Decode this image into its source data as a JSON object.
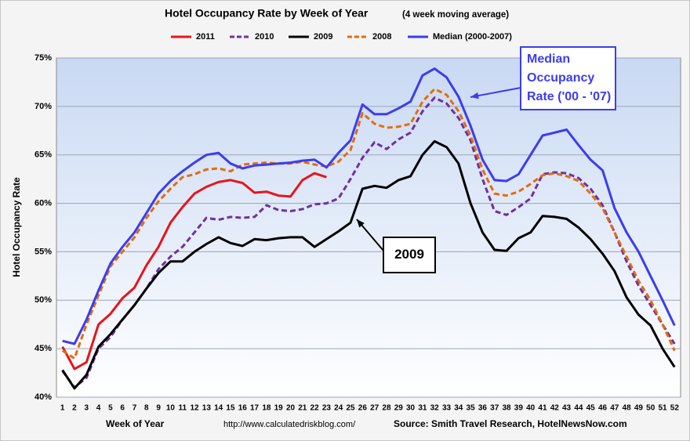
{
  "chart_data": {
    "type": "line",
    "title": "Hotel Occupancy Rate by  Week of Year",
    "subtitle": "(4 week moving average)",
    "y_label": "Hotel Occupancy Rate",
    "x_label": "Week of Year",
    "url": "http://www.calculatedriskblog.com/",
    "source": "Source: Smith Travel Research, HotelNewsNow.com",
    "categories": [
      "1",
      "2",
      "3",
      "4",
      "5",
      "6",
      "7",
      "8",
      "9",
      "10",
      "11",
      "12",
      "13",
      "14",
      "15",
      "16",
      "17",
      "18",
      "19",
      "20",
      "21",
      "22",
      "23",
      "24",
      "25",
      "26",
      "27",
      "28",
      "29",
      "30",
      "31",
      "32",
      "33",
      "34",
      "35",
      "36",
      "37",
      "38",
      "39",
      "40",
      "41",
      "42",
      "43",
      "44",
      "45",
      "46",
      "47",
      "48",
      "49",
      "50",
      "51",
      "52"
    ],
    "ylim": [
      40,
      75
    ],
    "yticks": [
      {
        "value": 40,
        "label": "40%"
      },
      {
        "value": 45,
        "label": "45%"
      },
      {
        "value": 50,
        "label": "50%"
      },
      {
        "value": 55,
        "label": "55%"
      },
      {
        "value": 60,
        "label": "60%"
      },
      {
        "value": 65,
        "label": "65%"
      },
      {
        "value": 70,
        "label": "70%"
      },
      {
        "value": 75,
        "label": "75%"
      }
    ],
    "grid": true,
    "series": [
      {
        "name": "2011",
        "color": "#e8141b",
        "dash": false,
        "values": [
          45.2,
          42.9,
          43.6,
          47.5,
          48.6,
          50.2,
          51.3,
          53.6,
          55.5,
          58,
          59.6,
          61,
          61.7,
          62.2,
          62.4,
          62.1,
          61.1,
          61.2,
          60.8,
          60.7,
          62.4,
          63.1,
          62.7,
          null,
          null,
          null,
          null,
          null,
          null,
          null,
          null,
          null,
          null,
          null,
          null,
          null,
          null,
          null,
          null,
          null,
          null,
          null,
          null,
          null,
          null,
          null,
          null,
          null,
          null,
          null,
          null,
          null
        ]
      },
      {
        "name": "2010",
        "color": "#7030a0",
        "dash": true,
        "values": [
          42.7,
          41,
          42,
          45,
          46.2,
          48,
          49.5,
          51.2,
          53.2,
          54.5,
          55.5,
          57,
          58.5,
          58.3,
          58.6,
          58.5,
          58.6,
          59.8,
          59.3,
          59.2,
          59.4,
          59.9,
          60,
          60.5,
          62.5,
          64.7,
          66.3,
          65.6,
          66.6,
          67.3,
          69.5,
          70.9,
          70.3,
          68.8,
          66.5,
          62.5,
          59.2,
          58.8,
          59.6,
          60.5,
          63,
          63.2,
          63.1,
          62.6,
          61.5,
          59.8,
          57,
          54,
          51.5,
          49.5,
          47.5,
          45.5
        ]
      },
      {
        "name": "2009",
        "color": "#000000",
        "dash": false,
        "values": [
          42.8,
          40.9,
          42.3,
          45.2,
          46.5,
          48,
          49.5,
          51.2,
          52.8,
          54,
          54,
          55,
          55.8,
          56.5,
          55.9,
          55.6,
          56.3,
          56.2,
          56.4,
          56.5,
          56.5,
          55.5,
          56.3,
          57.1,
          58,
          61.5,
          61.8,
          61.6,
          62.4,
          62.8,
          65,
          66.4,
          65.8,
          64.1,
          60,
          57,
          55.2,
          55.1,
          56.4,
          57,
          58.7,
          58.6,
          58.4,
          57.5,
          56.3,
          54.8,
          53,
          50.3,
          48.5,
          47.4,
          45,
          43.1
        ]
      },
      {
        "name": "2008",
        "color": "#e46c0a",
        "dash": true,
        "values": [
          44.8,
          44,
          47.5,
          50.5,
          53.5,
          55,
          56.5,
          58.5,
          60.2,
          61.5,
          62.7,
          63,
          63.5,
          63.6,
          63.3,
          64,
          64.1,
          64.2,
          64.1,
          64.1,
          64.3,
          64,
          63.8,
          64.3,
          65.5,
          69.3,
          68.2,
          67.8,
          67.9,
          68.2,
          70.5,
          71.8,
          71.2,
          69.5,
          67,
          63.5,
          61,
          60.8,
          61.2,
          62,
          62.9,
          63.1,
          62.8,
          62.3,
          61,
          59.5,
          57,
          54.5,
          52,
          50,
          47.5,
          44.8
        ]
      },
      {
        "name": "Median (2000-2007)",
        "color": "#3c3cf0",
        "dash": false,
        "values": [
          45.8,
          45.5,
          48,
          51,
          53.8,
          55.5,
          57,
          59,
          61,
          62.3,
          63.3,
          64.2,
          65,
          65.2,
          64.1,
          63.6,
          63.9,
          64,
          64.1,
          64.2,
          64.4,
          64.5,
          63.7,
          65.2,
          66.5,
          70.2,
          69.2,
          69.2,
          69.8,
          70.5,
          73.2,
          73.9,
          73,
          71,
          68,
          64.5,
          62.4,
          62.3,
          63,
          65,
          67,
          67.3,
          67.6,
          66,
          64.5,
          63.4,
          59.5,
          57,
          55,
          52.5,
          50,
          47.4
        ]
      }
    ],
    "annotations": [
      {
        "lines": [
          "Median",
          "Occupancy",
          "Rate ('00 - '07)"
        ],
        "color": "#3c3cf0"
      },
      {
        "lines": [
          "2009"
        ],
        "color": "#000000"
      }
    ]
  }
}
